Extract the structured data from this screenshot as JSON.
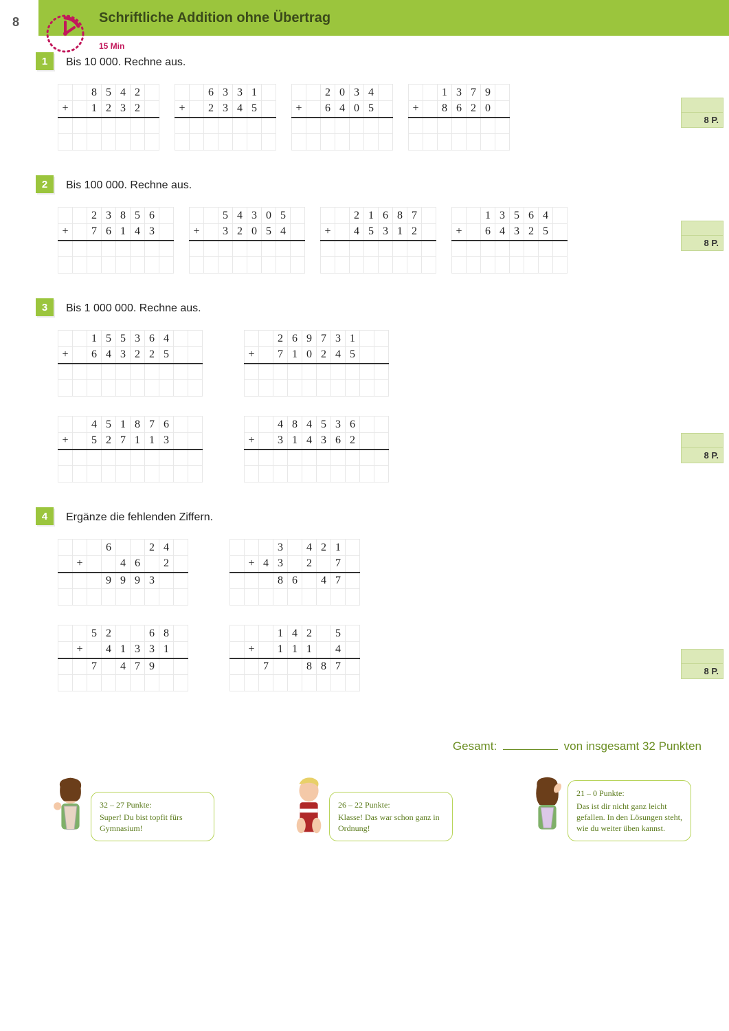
{
  "page_number": "8",
  "title": "Schriftliche Addition ohne Übertrag",
  "time": "15 Min",
  "colors": {
    "header": "#9bc53d",
    "accent": "#c2185b",
    "points_bg": "#dce9b8",
    "grid_line": "#e8e8e8"
  },
  "exercises": [
    {
      "num": "1",
      "instruction": "Bis 10 000. Rechne aus.",
      "cols": 7,
      "points": "8 P.",
      "problems": [
        {
          "r1": [
            " ",
            " ",
            "8",
            "5",
            "4",
            "2",
            " "
          ],
          "r2": [
            "+",
            " ",
            "1",
            "2",
            "3",
            "2",
            " "
          ]
        },
        {
          "r1": [
            " ",
            " ",
            "6",
            "3",
            "3",
            "1",
            " "
          ],
          "r2": [
            "+",
            " ",
            "2",
            "3",
            "4",
            "5",
            " "
          ]
        },
        {
          "r1": [
            " ",
            " ",
            "2",
            "0",
            "3",
            "4",
            " "
          ],
          "r2": [
            "+",
            " ",
            "6",
            "4",
            "0",
            "5",
            " "
          ]
        },
        {
          "r1": [
            " ",
            " ",
            "1",
            "3",
            "7",
            "9",
            " "
          ],
          "r2": [
            "+",
            " ",
            "8",
            "6",
            "2",
            "0",
            " "
          ]
        }
      ]
    },
    {
      "num": "2",
      "instruction": "Bis 100 000. Rechne aus.",
      "cols": 8,
      "points": "8 P.",
      "problems": [
        {
          "r1": [
            " ",
            " ",
            "2",
            "3",
            "8",
            "5",
            "6",
            " "
          ],
          "r2": [
            "+",
            " ",
            "7",
            "6",
            "1",
            "4",
            "3",
            " "
          ]
        },
        {
          "r1": [
            " ",
            " ",
            "5",
            "4",
            "3",
            "0",
            "5",
            " "
          ],
          "r2": [
            "+",
            " ",
            "3",
            "2",
            "0",
            "5",
            "4",
            " "
          ]
        },
        {
          "r1": [
            " ",
            " ",
            "2",
            "1",
            "6",
            "8",
            "7",
            " "
          ],
          "r2": [
            "+",
            " ",
            "4",
            "5",
            "3",
            "1",
            "2",
            " "
          ]
        },
        {
          "r1": [
            " ",
            " ",
            "1",
            "3",
            "5",
            "6",
            "4",
            " "
          ],
          "r2": [
            "+",
            " ",
            "6",
            "4",
            "3",
            "2",
            "5",
            " "
          ]
        }
      ]
    },
    {
      "num": "3",
      "instruction": "Bis 1 000 000. Rechne aus.",
      "cols": 10,
      "points": "8 P.",
      "groups": [
        [
          {
            "r1": [
              " ",
              " ",
              "1",
              "5",
              "5",
              "3",
              "6",
              "4",
              " ",
              " "
            ],
            "r2": [
              "+",
              " ",
              "6",
              "4",
              "3",
              "2",
              "2",
              "5",
              " ",
              " "
            ]
          },
          {
            "r1": [
              " ",
              " ",
              "2",
              "6",
              "9",
              "7",
              "3",
              "1",
              " ",
              " "
            ],
            "r2": [
              "+",
              " ",
              "7",
              "1",
              "0",
              "2",
              "4",
              "5",
              " ",
              " "
            ]
          }
        ],
        [
          {
            "r1": [
              " ",
              " ",
              "4",
              "5",
              "1",
              "8",
              "7",
              "6",
              " ",
              " "
            ],
            "r2": [
              "+",
              " ",
              "5",
              "2",
              "7",
              "1",
              "1",
              "3",
              " ",
              " "
            ]
          },
          {
            "r1": [
              " ",
              " ",
              "4",
              "8",
              "4",
              "5",
              "3",
              "6",
              " ",
              " "
            ],
            "r2": [
              "+",
              " ",
              "3",
              "1",
              "4",
              "3",
              "6",
              "2",
              " ",
              " "
            ]
          }
        ]
      ]
    },
    {
      "num": "4",
      "instruction": "Ergänze die fehlenden Ziffern.",
      "cols": 9,
      "points": "8 P.",
      "groups": [
        [
          {
            "r1": [
              " ",
              " ",
              " ",
              "6",
              " ",
              " ",
              "2",
              "4",
              " "
            ],
            "r2": [
              " ",
              "+",
              " ",
              " ",
              "4",
              "6",
              " ",
              "2",
              " "
            ],
            "r3": [
              " ",
              " ",
              " ",
              "9",
              "9",
              "9",
              "3",
              " ",
              " "
            ]
          },
          {
            "r1": [
              " ",
              " ",
              " ",
              "3",
              " ",
              "4",
              "2",
              "1",
              " "
            ],
            "r2": [
              " ",
              "+",
              "4",
              "3",
              " ",
              "2",
              " ",
              "7",
              " "
            ],
            "r3": [
              " ",
              " ",
              " ",
              "8",
              "6",
              " ",
              "4",
              "7",
              " "
            ]
          }
        ],
        [
          {
            "r1": [
              " ",
              " ",
              "5",
              "2",
              " ",
              " ",
              "6",
              "8",
              " "
            ],
            "r2": [
              " ",
              "+",
              " ",
              "4",
              "1",
              "3",
              "3",
              "1",
              " "
            ],
            "r3": [
              " ",
              " ",
              "7",
              " ",
              "4",
              "7",
              "9",
              " ",
              " "
            ]
          },
          {
            "r1": [
              " ",
              " ",
              " ",
              "1",
              "4",
              "2",
              " ",
              "5",
              " "
            ],
            "r2": [
              " ",
              "+",
              " ",
              "1",
              "1",
              "1",
              " ",
              "4",
              " "
            ],
            "r3": [
              " ",
              " ",
              "7",
              " ",
              " ",
              "8",
              "8",
              "7",
              " "
            ]
          }
        ]
      ]
    }
  ],
  "gesamt": {
    "label": "Gesamt:",
    "suffix": "von insgesamt 32 Punkten"
  },
  "feedback": [
    {
      "range": "32 – 27 Punkte:",
      "text": "Super! Du bist topfit fürs Gymnasium!"
    },
    {
      "range": "26 – 22 Punkte:",
      "text": "Klasse! Das war schon ganz in Ordnung!"
    },
    {
      "range": "21 – 0 Punkte:",
      "text": "Das ist dir nicht ganz leicht gefallen. In den Lösungen steht, wie du weiter üben kannst."
    }
  ]
}
